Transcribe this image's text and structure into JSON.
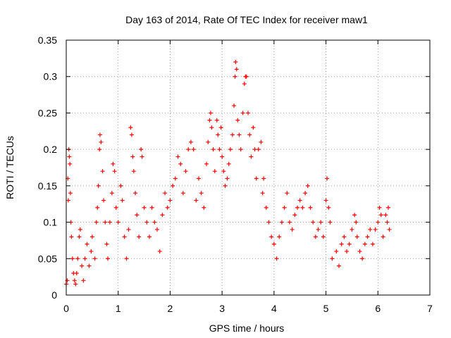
{
  "chart_data": {
    "type": "scatter",
    "title": "Day 163 of 2014, Rate Of TEC Index for receiver maw1",
    "xlabel": "GPS time / hours",
    "ylabel": "ROTI / TECUs",
    "xlim": [
      0,
      7
    ],
    "ylim": [
      0,
      0.35
    ],
    "xticks": [
      0,
      1,
      2,
      3,
      4,
      5,
      6,
      7
    ],
    "yticks": [
      0,
      0.05,
      0.1,
      0.15,
      0.2,
      0.25,
      0.3,
      0.35
    ],
    "xtick_labels": [
      "0",
      "1",
      "2",
      "3",
      "4",
      "5",
      "6",
      "7"
    ],
    "ytick_labels": [
      "0",
      "0.05",
      "0.1",
      "0.15",
      "0.2",
      "0.25",
      "0.3",
      "0.35"
    ],
    "grid": true,
    "marker": "+",
    "color": "#ff0000",
    "series": [
      {
        "name": "ROTI",
        "points": [
          [
            0.0,
            0.015
          ],
          [
            0.02,
            0.02
          ],
          [
            0.03,
            0.16
          ],
          [
            0.04,
            0.13
          ],
          [
            0.05,
            0.2
          ],
          [
            0.06,
            0.19
          ],
          [
            0.07,
            0.18
          ],
          [
            0.08,
            0.14
          ],
          [
            0.09,
            0.1
          ],
          [
            0.1,
            0.08
          ],
          [
            0.12,
            0.05
          ],
          [
            0.14,
            0.03
          ],
          [
            0.16,
            0.02
          ],
          [
            0.18,
            0.015
          ],
          [
            0.2,
            0.03
          ],
          [
            0.22,
            0.05
          ],
          [
            0.25,
            0.08
          ],
          [
            0.27,
            0.09
          ],
          [
            0.3,
            0.04
          ],
          [
            0.33,
            0.02
          ],
          [
            0.36,
            0.05
          ],
          [
            0.4,
            0.07
          ],
          [
            0.44,
            0.04
          ],
          [
            0.48,
            0.06
          ],
          [
            0.5,
            0.08
          ],
          [
            0.55,
            0.05
          ],
          [
            0.58,
            0.1
          ],
          [
            0.6,
            0.12
          ],
          [
            0.62,
            0.15
          ],
          [
            0.64,
            0.2
          ],
          [
            0.65,
            0.22
          ],
          [
            0.67,
            0.21
          ],
          [
            0.7,
            0.17
          ],
          [
            0.72,
            0.13
          ],
          [
            0.75,
            0.1
          ],
          [
            0.78,
            0.07
          ],
          [
            0.8,
            0.05
          ],
          [
            0.84,
            0.1
          ],
          [
            0.88,
            0.14
          ],
          [
            0.9,
            0.18
          ],
          [
            0.93,
            0.17
          ],
          [
            0.96,
            0.12
          ],
          [
            1.0,
            0.1
          ],
          [
            1.05,
            0.15
          ],
          [
            1.08,
            0.13
          ],
          [
            1.12,
            0.08
          ],
          [
            1.16,
            0.05
          ],
          [
            1.2,
            0.09
          ],
          [
            1.24,
            0.23
          ],
          [
            1.26,
            0.22
          ],
          [
            1.28,
            0.19
          ],
          [
            1.3,
            0.17
          ],
          [
            1.33,
            0.14
          ],
          [
            1.36,
            0.11
          ],
          [
            1.4,
            0.08
          ],
          [
            1.44,
            0.2
          ],
          [
            1.46,
            0.19
          ],
          [
            1.5,
            0.12
          ],
          [
            1.55,
            0.1
          ],
          [
            1.6,
            0.08
          ],
          [
            1.65,
            0.12
          ],
          [
            1.7,
            0.1
          ],
          [
            1.75,
            0.09
          ],
          [
            1.8,
            0.06
          ],
          [
            1.85,
            0.11
          ],
          [
            1.9,
            0.14
          ],
          [
            1.95,
            0.12
          ],
          [
            2.0,
            0.13
          ],
          [
            2.05,
            0.15
          ],
          [
            2.1,
            0.16
          ],
          [
            2.15,
            0.19
          ],
          [
            2.2,
            0.18
          ],
          [
            2.25,
            0.14
          ],
          [
            2.3,
            0.17
          ],
          [
            2.35,
            0.2
          ],
          [
            2.4,
            0.21
          ],
          [
            2.45,
            0.2
          ],
          [
            2.5,
            0.13
          ],
          [
            2.55,
            0.16
          ],
          [
            2.6,
            0.14
          ],
          [
            2.65,
            0.12
          ],
          [
            2.7,
            0.18
          ],
          [
            2.73,
            0.21
          ],
          [
            2.76,
            0.24
          ],
          [
            2.78,
            0.25
          ],
          [
            2.8,
            0.23
          ],
          [
            2.83,
            0.2
          ],
          [
            2.86,
            0.17
          ],
          [
            2.9,
            0.24
          ],
          [
            2.92,
            0.22
          ],
          [
            2.95,
            0.2
          ],
          [
            2.98,
            0.23
          ],
          [
            3.0,
            0.19
          ],
          [
            3.03,
            0.17
          ],
          [
            3.06,
            0.15
          ],
          [
            3.1,
            0.16
          ],
          [
            3.13,
            0.18
          ],
          [
            3.16,
            0.2
          ],
          [
            3.2,
            0.22
          ],
          [
            3.23,
            0.26
          ],
          [
            3.25,
            0.3
          ],
          [
            3.26,
            0.32
          ],
          [
            3.28,
            0.31
          ],
          [
            3.3,
            0.24
          ],
          [
            3.33,
            0.22
          ],
          [
            3.36,
            0.2
          ],
          [
            3.4,
            0.25
          ],
          [
            3.43,
            0.29
          ],
          [
            3.45,
            0.3
          ],
          [
            3.47,
            0.3
          ],
          [
            3.5,
            0.25
          ],
          [
            3.53,
            0.22
          ],
          [
            3.56,
            0.19
          ],
          [
            3.6,
            0.23
          ],
          [
            3.63,
            0.2
          ],
          [
            3.66,
            0.16
          ],
          [
            3.7,
            0.2
          ],
          [
            3.75,
            0.21
          ],
          [
            3.78,
            0.14
          ],
          [
            3.8,
            0.16
          ],
          [
            3.85,
            0.12
          ],
          [
            3.9,
            0.1
          ],
          [
            3.95,
            0.08
          ],
          [
            4.0,
            0.07
          ],
          [
            4.05,
            0.05
          ],
          [
            4.1,
            0.08
          ],
          [
            4.15,
            0.1
          ],
          [
            4.2,
            0.12
          ],
          [
            4.25,
            0.14
          ],
          [
            4.3,
            0.1
          ],
          [
            4.35,
            0.09
          ],
          [
            4.4,
            0.11
          ],
          [
            4.45,
            0.12
          ],
          [
            4.5,
            0.13
          ],
          [
            4.55,
            0.12
          ],
          [
            4.6,
            0.14
          ],
          [
            4.65,
            0.15
          ],
          [
            4.7,
            0.12
          ],
          [
            4.75,
            0.1
          ],
          [
            4.8,
            0.08
          ],
          [
            4.85,
            0.09
          ],
          [
            4.9,
            0.1
          ],
          [
            4.95,
            0.08
          ],
          [
            5.0,
            0.13
          ],
          [
            5.02,
            0.16
          ],
          [
            5.05,
            0.12
          ],
          [
            5.08,
            0.1
          ],
          [
            5.12,
            0.05
          ],
          [
            5.2,
            0.06
          ],
          [
            5.25,
            0.04
          ],
          [
            5.3,
            0.07
          ],
          [
            5.35,
            0.08
          ],
          [
            5.4,
            0.06
          ],
          [
            5.45,
            0.07
          ],
          [
            5.5,
            0.09
          ],
          [
            5.55,
            0.11
          ],
          [
            5.58,
            0.1
          ],
          [
            5.6,
            0.08
          ],
          [
            5.65,
            0.06
          ],
          [
            5.7,
            0.05
          ],
          [
            5.75,
            0.07
          ],
          [
            5.8,
            0.08
          ],
          [
            5.85,
            0.09
          ],
          [
            5.9,
            0.07
          ],
          [
            5.95,
            0.09
          ],
          [
            6.0,
            0.1
          ],
          [
            6.03,
            0.12
          ],
          [
            6.06,
            0.11
          ],
          [
            6.1,
            0.08
          ],
          [
            6.15,
            0.11
          ],
          [
            6.18,
            0.1
          ],
          [
            6.2,
            0.12
          ],
          [
            6.22,
            0.09
          ]
        ]
      }
    ]
  }
}
